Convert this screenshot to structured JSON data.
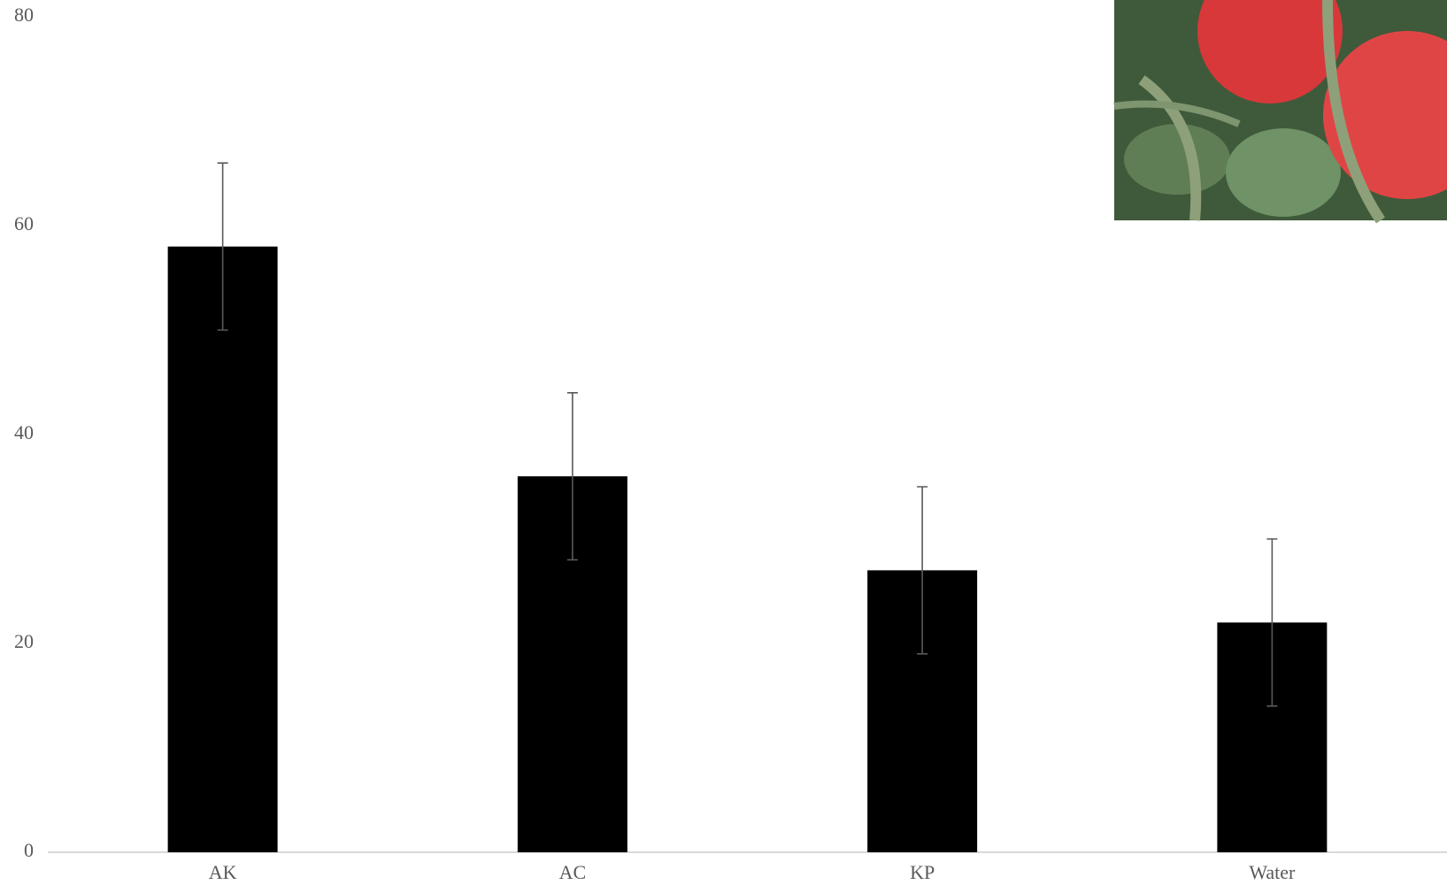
{
  "chart_data": {
    "type": "bar",
    "categories": [
      "AK",
      "AC",
      "KP",
      "Water"
    ],
    "values": [
      58,
      36,
      27,
      22
    ],
    "errors": [
      8,
      8,
      8,
      8
    ],
    "color": "#000000",
    "error_color": "#595959",
    "ylim": [
      0,
      80
    ],
    "yticks": [
      0,
      20,
      40,
      60,
      80
    ],
    "grid": false
  }
}
